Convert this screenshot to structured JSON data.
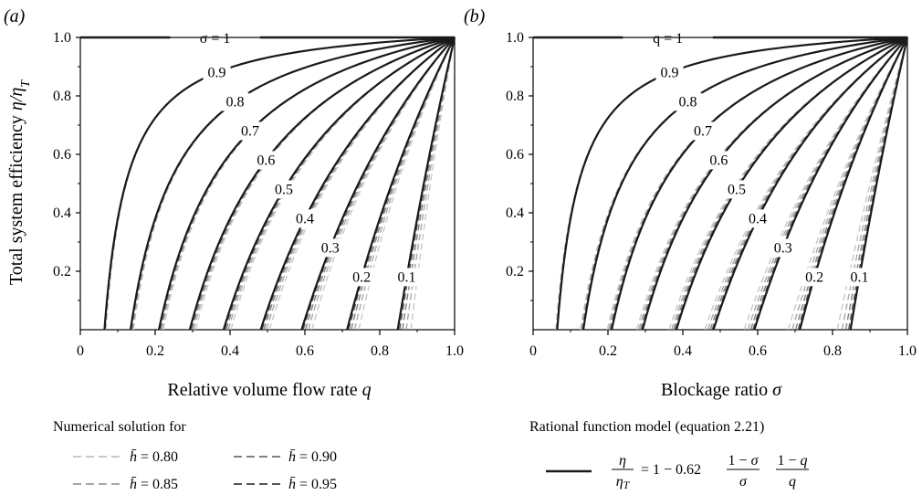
{
  "chart_data": [
    {
      "type": "line",
      "panel_label": "(a)",
      "xlabel": "Relative volume flow rate ",
      "xlabel_var": "q",
      "ylabel": "Total system efficiency ",
      "ylabel_var": "η/η",
      "ylabel_sub": "T",
      "xlim": [
        0,
        1
      ],
      "ylim": [
        0,
        1
      ],
      "xticks": [
        "0",
        "0.2",
        "0.4",
        "0.6",
        "0.8",
        "1.0"
      ],
      "yticks": [
        "0.2",
        "0.4",
        "0.6",
        "0.8",
        "1.0"
      ],
      "param_var": "σ",
      "first_label": "σ = 1",
      "sweep": "q",
      "params": [
        1,
        0.9,
        0.8,
        0.7,
        0.6,
        0.5,
        0.4,
        0.3,
        0.2,
        0.1
      ],
      "model_curves": "η/η_T = 1 − 0.62 (1−σ)/σ · (1−q)/q, one curve per σ",
      "curve_labels": [
        "0.9",
        "0.8",
        "0.7",
        "0.6",
        "0.5",
        "0.4",
        "0.3",
        "0.2",
        "0.1"
      ]
    },
    {
      "type": "line",
      "panel_label": "(b)",
      "xlabel": "Blockage ratio ",
      "xlabel_var": "σ",
      "xlim": [
        0,
        1
      ],
      "ylim": [
        0,
        1
      ],
      "xticks": [
        "0",
        "0.2",
        "0.4",
        "0.6",
        "0.8",
        "1.0"
      ],
      "yticks": [
        "0.2",
        "0.4",
        "0.6",
        "0.8",
        "1.0"
      ],
      "param_var": "q",
      "first_label": "q = 1",
      "sweep": "σ",
      "params": [
        1,
        0.9,
        0.8,
        0.7,
        0.6,
        0.5,
        0.4,
        0.3,
        0.2,
        0.1
      ],
      "model_curves": "η/η_T = 1 − 0.62 (1−σ)/σ · (1−q)/q, one curve per q",
      "curve_labels": [
        "0.9",
        "0.8",
        "0.7",
        "0.6",
        "0.5",
        "0.4",
        "0.3",
        "0.2",
        "0.1"
      ]
    }
  ],
  "model": {
    "coefficient": 0.62
  },
  "legend": {
    "numerical_title": "Numerical solution for",
    "numerical_entries": [
      {
        "label": "= 0.80",
        "color": "#c8c8c8"
      },
      {
        "label": "= 0.85",
        "color": "#a8a8a8"
      },
      {
        "label": "= 0.90",
        "color": "#808080"
      },
      {
        "label": "= 0.95",
        "color": "#555555"
      }
    ],
    "model_title": "Rational function model (equation 2.21)",
    "model_color": "#1a1a1a"
  }
}
